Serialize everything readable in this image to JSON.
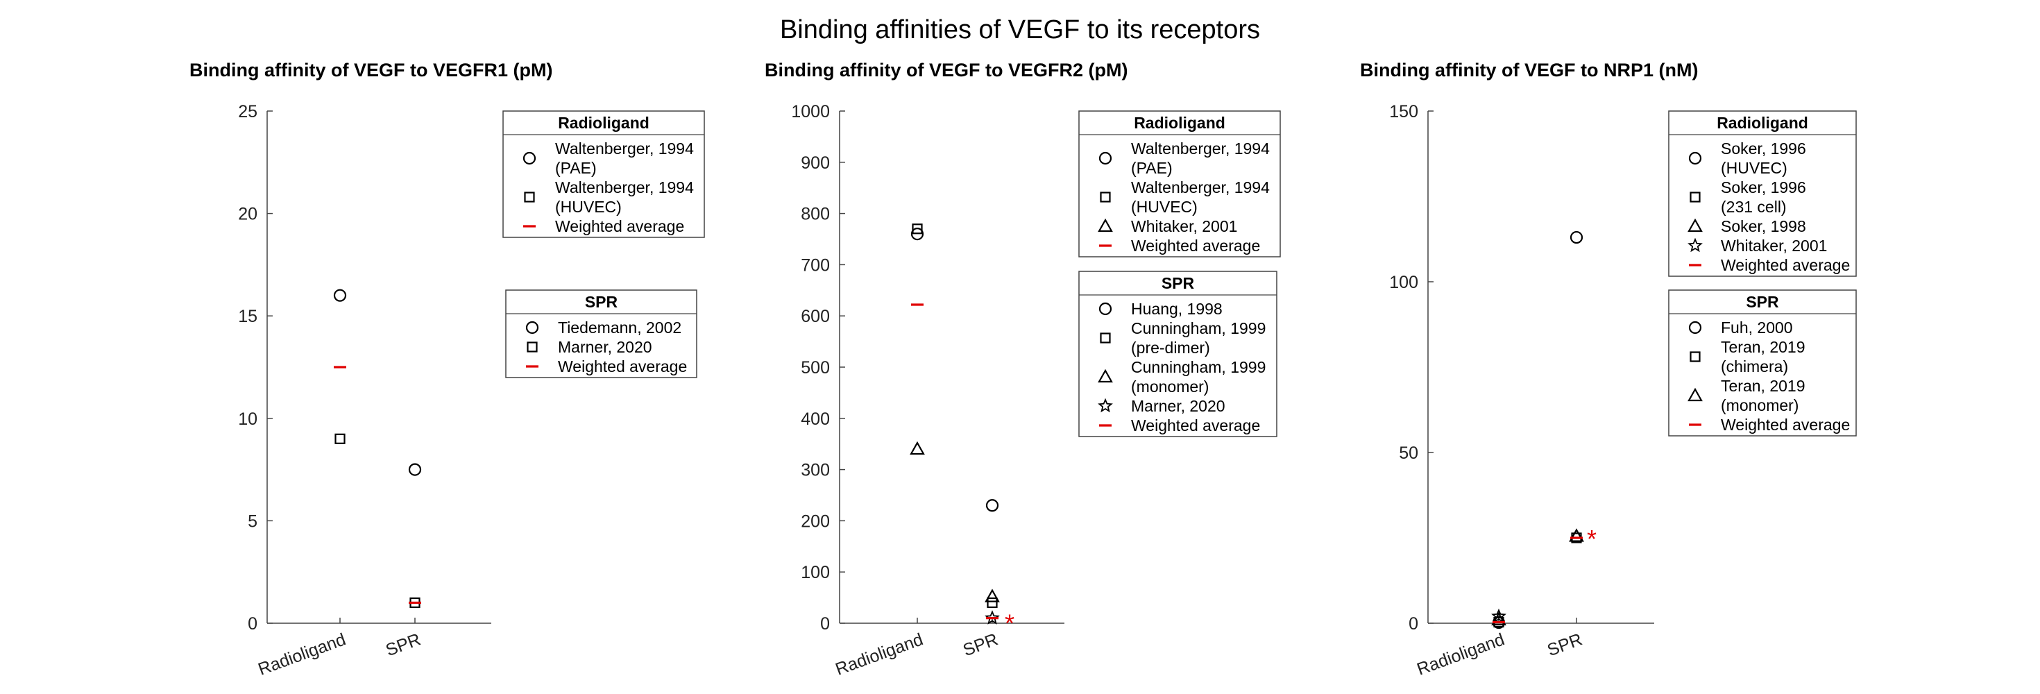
{
  "figure": {
    "title": "Binding affinities of VEGF to its receptors",
    "colors": {
      "marker": "#000000",
      "average": "#e00000",
      "axis": "#444444"
    }
  },
  "chart_data": [
    {
      "type": "scatter",
      "title": "Binding affinity of VEGF to VEGFR1 (pM)",
      "categories": [
        "Radioligand",
        "SPR"
      ],
      "ylim": [
        0,
        25
      ],
      "yticks": [
        "0",
        "5",
        "10",
        "15",
        "20",
        "25"
      ],
      "grid": false,
      "series": [
        {
          "name": "Waltenberger, 1994 (PAE)",
          "category": "Radioligand",
          "marker": "circle",
          "y": 16
        },
        {
          "name": "Waltenberger, 1994 (HUVEC)",
          "category": "Radioligand",
          "marker": "square",
          "y": 9
        },
        {
          "name": "Weighted average",
          "category": "Radioligand",
          "marker": "dash",
          "y": 12.5
        },
        {
          "name": "Tiedemann, 2002",
          "category": "SPR",
          "marker": "circle",
          "y": 7.5
        },
        {
          "name": "Marner, 2020",
          "category": "SPR",
          "marker": "square",
          "y": 1
        },
        {
          "name": "Weighted average",
          "category": "SPR",
          "marker": "dash",
          "y": 1
        }
      ],
      "annotations": [],
      "legends": [
        {
          "title": "Radioligand",
          "entries": [
            {
              "marker": "circle",
              "lines": [
                "Waltenberger, 1994",
                "(PAE)"
              ]
            },
            {
              "marker": "square",
              "lines": [
                "Waltenberger, 1994",
                "(HUVEC)"
              ]
            },
            {
              "marker": "dash",
              "lines": [
                "Weighted average"
              ]
            }
          ]
        },
        {
          "title": "SPR",
          "entries": [
            {
              "marker": "circle",
              "lines": [
                "Tiedemann, 2002"
              ]
            },
            {
              "marker": "square",
              "lines": [
                "Marner, 2020"
              ]
            },
            {
              "marker": "dash",
              "lines": [
                "Weighted average"
              ]
            }
          ]
        }
      ]
    },
    {
      "type": "scatter",
      "title": "Binding affinity of VEGF to VEGFR2 (pM)",
      "categories": [
        "Radioligand",
        "SPR"
      ],
      "ylim": [
        0,
        1000
      ],
      "yticks": [
        "0",
        "100",
        "200",
        "300",
        "400",
        "500",
        "600",
        "700",
        "800",
        "900",
        "1000"
      ],
      "grid": false,
      "series": [
        {
          "name": "Waltenberger, 1994 (PAE)",
          "category": "Radioligand",
          "marker": "circle",
          "y": 760
        },
        {
          "name": "Waltenberger, 1994 (HUVEC)",
          "category": "Radioligand",
          "marker": "square",
          "y": 770
        },
        {
          "name": "Whitaker, 2001",
          "category": "Radioligand",
          "marker": "triangle",
          "y": 340
        },
        {
          "name": "Weighted average",
          "category": "Radioligand",
          "marker": "dash",
          "y": 622
        },
        {
          "name": "Huang, 1998",
          "category": "SPR",
          "marker": "circle",
          "y": 230
        },
        {
          "name": "Cunningham, 1999 (pre-dimer)",
          "category": "SPR",
          "marker": "square",
          "y": 40
        },
        {
          "name": "Cunningham, 1999 (monomer)",
          "category": "SPR",
          "marker": "triangle",
          "y": 52
        },
        {
          "name": "Marner, 2020",
          "category": "SPR",
          "marker": "star",
          "y": 10
        },
        {
          "name": "Weighted average",
          "category": "SPR",
          "marker": "dash",
          "y": 10
        }
      ],
      "annotations": [
        {
          "text": "*",
          "category": "SPR",
          "y": 10
        }
      ],
      "legends": [
        {
          "title": "Radioligand",
          "entries": [
            {
              "marker": "circle",
              "lines": [
                "Waltenberger, 1994",
                "(PAE)"
              ]
            },
            {
              "marker": "square",
              "lines": [
                "Waltenberger, 1994",
                "(HUVEC)"
              ]
            },
            {
              "marker": "triangle",
              "lines": [
                "Whitaker, 2001"
              ]
            },
            {
              "marker": "dash",
              "lines": [
                "Weighted average"
              ]
            }
          ]
        },
        {
          "title": "SPR",
          "entries": [
            {
              "marker": "circle",
              "lines": [
                "Huang, 1998"
              ]
            },
            {
              "marker": "square",
              "lines": [
                "Cunningham, 1999",
                "(pre-dimer)"
              ]
            },
            {
              "marker": "triangle",
              "lines": [
                "Cunningham, 1999",
                "(monomer)"
              ]
            },
            {
              "marker": "star",
              "lines": [
                "Marner, 2020"
              ]
            },
            {
              "marker": "dash",
              "lines": [
                "Weighted average"
              ]
            }
          ]
        }
      ]
    },
    {
      "type": "scatter",
      "title": "Binding affinity of VEGF to NRP1 (nM)",
      "categories": [
        "Radioligand",
        "SPR"
      ],
      "ylim": [
        0,
        150
      ],
      "yticks": [
        "0",
        "50",
        "100",
        "150"
      ],
      "grid": false,
      "series": [
        {
          "name": "Soker, 1996 (HUVEC)",
          "category": "Radioligand",
          "marker": "circle",
          "y": 0.2
        },
        {
          "name": "Soker, 1996 (231 cell)",
          "category": "Radioligand",
          "marker": "square",
          "y": 0.3
        },
        {
          "name": "Soker, 1998",
          "category": "Radioligand",
          "marker": "triangle",
          "y": 1
        },
        {
          "name": "Whitaker, 2001",
          "category": "Radioligand",
          "marker": "star",
          "y": 2
        },
        {
          "name": "Weighted average",
          "category": "Radioligand",
          "marker": "dash",
          "y": 0.3
        },
        {
          "name": "Fuh, 2000",
          "category": "SPR",
          "marker": "circle",
          "y": 113
        },
        {
          "name": "Teran, 2019 (chimera)",
          "category": "SPR",
          "marker": "square",
          "y": 25
        },
        {
          "name": "Teran, 2019 (monomer)",
          "category": "SPR",
          "marker": "triangle",
          "y": 25.5
        },
        {
          "name": "Weighted average",
          "category": "SPR",
          "marker": "dash",
          "y": 25
        }
      ],
      "annotations": [
        {
          "text": "*",
          "category": "SPR",
          "y": 25
        }
      ],
      "legends": [
        {
          "title": "Radioligand",
          "entries": [
            {
              "marker": "circle",
              "lines": [
                "Soker, 1996",
                "(HUVEC)"
              ]
            },
            {
              "marker": "square",
              "lines": [
                "Soker, 1996",
                "(231 cell)"
              ]
            },
            {
              "marker": "triangle",
              "lines": [
                "Soker, 1998"
              ]
            },
            {
              "marker": "star",
              "lines": [
                "Whitaker, 2001"
              ]
            },
            {
              "marker": "dash",
              "lines": [
                "Weighted average"
              ]
            }
          ]
        },
        {
          "title": "SPR",
          "entries": [
            {
              "marker": "circle",
              "lines": [
                "Fuh, 2000"
              ]
            },
            {
              "marker": "square",
              "lines": [
                "Teran, 2019",
                "(chimera)"
              ]
            },
            {
              "marker": "triangle",
              "lines": [
                "Teran, 2019",
                "(monomer)"
              ]
            },
            {
              "marker": "dash",
              "lines": [
                "Weighted average"
              ]
            }
          ]
        }
      ]
    }
  ]
}
